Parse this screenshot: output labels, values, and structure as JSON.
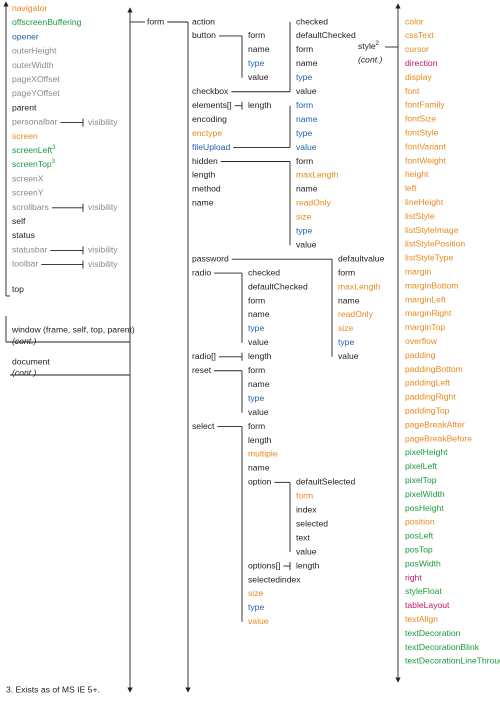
{
  "window_properties": [
    {
      "label": "navigator",
      "color": "#e8891c"
    },
    {
      "label": "offscreenBuffering",
      "color": "#1a9a3a"
    },
    {
      "label": "opener",
      "color": "#1f5fb5"
    },
    {
      "label": "outerHeight",
      "color": "#8a8a8a"
    },
    {
      "label": "outerWidth",
      "color": "#8a8a8a"
    },
    {
      "label": "pageXOffset",
      "color": "#8a8a8a"
    },
    {
      "label": "pageYOffset",
      "color": "#8a8a8a"
    },
    {
      "label": "parent",
      "color": "#222222"
    },
    {
      "label": "personalbar",
      "color": "#8a8a8a",
      "sub": "visibility"
    },
    {
      "label": "screen",
      "color": "#e8891c"
    },
    {
      "label": "screenLeft",
      "color": "#1a9a3a",
      "note": "3"
    },
    {
      "label": "screenTop",
      "color": "#1a9a3a",
      "note": "3"
    },
    {
      "label": "screenX",
      "color": "#8a8a8a"
    },
    {
      "label": "screenY",
      "color": "#8a8a8a"
    },
    {
      "label": "scrollbars",
      "color": "#8a8a8a",
      "sub": "visibility"
    },
    {
      "label": "self",
      "color": "#222222"
    },
    {
      "label": "status",
      "color": "#222222"
    },
    {
      "label": "statusbar",
      "color": "#8a8a8a",
      "sub": "visibility"
    },
    {
      "label": "toolbar",
      "color": "#8a8a8a",
      "sub": "visibility"
    },
    {
      "label": "top",
      "color": "#222222"
    }
  ],
  "window": {
    "label": "window (frame, self, top, parent)",
    "note": "(cont.)"
  },
  "document": {
    "label": "document",
    "note": "(cont.)"
  },
  "form": {
    "label": "form",
    "properties": [
      {
        "label": "action",
        "color": "#222222"
      },
      {
        "label": "button",
        "color": "#222222",
        "properties": [
          {
            "label": "form",
            "color": "#222222"
          },
          {
            "label": "name",
            "color": "#222222"
          },
          {
            "label": "type",
            "color": "#1f5fb5"
          },
          {
            "label": "value",
            "color": "#222222"
          }
        ]
      },
      {
        "label": "checkbox",
        "color": "#222222",
        "properties": [
          {
            "label": "checked",
            "color": "#222222"
          },
          {
            "label": "defaultChecked",
            "color": "#222222"
          },
          {
            "label": "form",
            "color": "#222222"
          },
          {
            "label": "name",
            "color": "#222222"
          },
          {
            "label": "type",
            "color": "#1f5fb5"
          },
          {
            "label": "value",
            "color": "#222222"
          }
        ]
      },
      {
        "label": "elements[]",
        "color": "#222222",
        "properties": [
          {
            "label": "length",
            "color": "#222222"
          }
        ]
      },
      {
        "label": "encoding",
        "color": "#222222"
      },
      {
        "label": "enctype",
        "color": "#e8891c"
      },
      {
        "label": "fileUpload",
        "color": "#1f5fb5",
        "properties": [
          {
            "label": "form",
            "color": "#1f5fb5"
          },
          {
            "label": "name",
            "color": "#1f5fb5"
          },
          {
            "label": "type",
            "color": "#1f5fb5"
          },
          {
            "label": "value",
            "color": "#1f5fb5"
          }
        ]
      },
      {
        "label": "hidden",
        "color": "#222222",
        "properties": [
          {
            "label": "form",
            "color": "#222222"
          },
          {
            "label": "maxLength",
            "color": "#e8891c"
          },
          {
            "label": "name",
            "color": "#222222"
          },
          {
            "label": "readOnly",
            "color": "#e8891c"
          },
          {
            "label": "size",
            "color": "#e8891c"
          },
          {
            "label": "type",
            "color": "#1f5fb5"
          },
          {
            "label": "value",
            "color": "#222222"
          }
        ]
      },
      {
        "label": "length",
        "color": "#222222"
      },
      {
        "label": "method",
        "color": "#222222"
      },
      {
        "label": "name",
        "color": "#222222"
      },
      {
        "label": "password",
        "color": "#222222",
        "properties": [
          {
            "label": "defaultvalue",
            "color": "#222222"
          },
          {
            "label": "form",
            "color": "#222222"
          },
          {
            "label": "maxLength",
            "color": "#e8891c"
          },
          {
            "label": "name",
            "color": "#222222"
          },
          {
            "label": "readOnly",
            "color": "#e8891c"
          },
          {
            "label": "size",
            "color": "#e8891c"
          },
          {
            "label": "type",
            "color": "#1f5fb5"
          },
          {
            "label": "value",
            "color": "#222222"
          }
        ]
      },
      {
        "label": "radio",
        "color": "#222222",
        "properties": [
          {
            "label": "checked",
            "color": "#222222"
          },
          {
            "label": "defaultChecked",
            "color": "#222222"
          },
          {
            "label": "form",
            "color": "#222222"
          },
          {
            "label": "name",
            "color": "#222222"
          },
          {
            "label": "type",
            "color": "#1f5fb5"
          },
          {
            "label": "value",
            "color": "#222222"
          }
        ]
      },
      {
        "label": "radio[]",
        "color": "#222222",
        "properties": [
          {
            "label": "length",
            "color": "#222222"
          }
        ]
      },
      {
        "label": "reset",
        "color": "#222222",
        "properties": [
          {
            "label": "form",
            "color": "#222222"
          },
          {
            "label": "name",
            "color": "#222222"
          },
          {
            "label": "type",
            "color": "#1f5fb5"
          },
          {
            "label": "value",
            "color": "#222222"
          }
        ]
      },
      {
        "label": "select",
        "color": "#222222",
        "properties": [
          {
            "label": "form",
            "color": "#222222"
          },
          {
            "label": "length",
            "color": "#222222"
          },
          {
            "label": "multiple",
            "color": "#e8891c"
          },
          {
            "label": "name",
            "color": "#222222"
          },
          {
            "label": "option",
            "color": "#222222",
            "properties": [
              {
                "label": "defaultSelected",
                "color": "#222222"
              },
              {
                "label": "form",
                "color": "#e8891c"
              },
              {
                "label": "index",
                "color": "#222222"
              },
              {
                "label": "selected",
                "color": "#222222"
              },
              {
                "label": "text",
                "color": "#222222"
              },
              {
                "label": "value",
                "color": "#222222"
              }
            ]
          },
          {
            "label": "options[]",
            "color": "#222222",
            "properties": [
              {
                "label": "length",
                "color": "#222222"
              }
            ]
          },
          {
            "label": "selectedindex",
            "color": "#222222"
          },
          {
            "label": "size",
            "color": "#e8891c"
          },
          {
            "label": "type",
            "color": "#1f5fb5"
          },
          {
            "label": "value",
            "color": "#e8891c"
          }
        ]
      }
    ]
  },
  "style": {
    "label": "style",
    "note": "2",
    "cont": "(cont.)",
    "properties": [
      {
        "label": "color",
        "color": "#e8891c"
      },
      {
        "label": "cssText",
        "color": "#e8891c"
      },
      {
        "label": "cursor",
        "color": "#e8891c"
      },
      {
        "label": "direction",
        "color": "#c0166a"
      },
      {
        "label": "display",
        "color": "#e8891c"
      },
      {
        "label": "font",
        "color": "#e8891c"
      },
      {
        "label": "fontFamily",
        "color": "#e8891c"
      },
      {
        "label": "fontSize",
        "color": "#e8891c"
      },
      {
        "label": "fontStyle",
        "color": "#e8891c"
      },
      {
        "label": "fontVariant",
        "color": "#e8891c"
      },
      {
        "label": "fontWeight",
        "color": "#e8891c"
      },
      {
        "label": "height",
        "color": "#e8891c"
      },
      {
        "label": "left",
        "color": "#e8891c"
      },
      {
        "label": "lineHeight",
        "color": "#e8891c"
      },
      {
        "label": "listStyle",
        "color": "#e8891c"
      },
      {
        "label": "listStyleImage",
        "color": "#e8891c"
      },
      {
        "label": "listStylePosition",
        "color": "#e8891c"
      },
      {
        "label": "listStyleType",
        "color": "#e8891c"
      },
      {
        "label": "margin",
        "color": "#e8891c"
      },
      {
        "label": "marginBottom",
        "color": "#e8891c"
      },
      {
        "label": "marginLeft",
        "color": "#e8891c"
      },
      {
        "label": "marginRight",
        "color": "#e8891c"
      },
      {
        "label": "marginTop",
        "color": "#e8891c"
      },
      {
        "label": "overflow",
        "color": "#e8891c"
      },
      {
        "label": "padding",
        "color": "#e8891c"
      },
      {
        "label": "paddingBottom",
        "color": "#e8891c"
      },
      {
        "label": "paddingLeft",
        "color": "#e8891c"
      },
      {
        "label": "paddingRight",
        "color": "#e8891c"
      },
      {
        "label": "paddingTop",
        "color": "#e8891c"
      },
      {
        "label": "pageBreakAfter",
        "color": "#e8891c"
      },
      {
        "label": "pageBreakBefore",
        "color": "#e8891c"
      },
      {
        "label": "pixelHeight",
        "color": "#1a9a3a"
      },
      {
        "label": "pixelLeft",
        "color": "#1a9a3a"
      },
      {
        "label": "pixelTop",
        "color": "#1a9a3a"
      },
      {
        "label": "pixelWidth",
        "color": "#1a9a3a"
      },
      {
        "label": "posHeight",
        "color": "#1a9a3a"
      },
      {
        "label": "position",
        "color": "#e8891c"
      },
      {
        "label": "posLeft",
        "color": "#1a9a3a"
      },
      {
        "label": "posTop",
        "color": "#1a9a3a"
      },
      {
        "label": "posWidth",
        "color": "#1a9a3a"
      },
      {
        "label": "right",
        "color": "#c0166a"
      },
      {
        "label": "styleFloat",
        "color": "#1a9a3a"
      },
      {
        "label": "tableLayout",
        "color": "#c0166a"
      },
      {
        "label": "textAlign",
        "color": "#e8891c"
      },
      {
        "label": "textDecoration",
        "color": "#1a9a3a"
      },
      {
        "label": "textDecorationBlink",
        "color": "#1a9a3a"
      },
      {
        "label": "textDecorationLineThrough",
        "color": "#1a9a3a"
      }
    ]
  },
  "footnote": "3. Exists as of MS IE 5+."
}
